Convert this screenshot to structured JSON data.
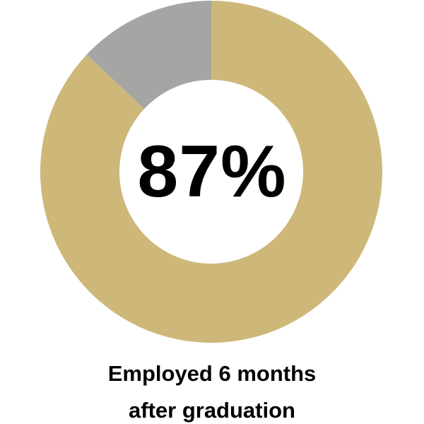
{
  "chart_data": {
    "type": "pie",
    "style": "donut",
    "center_label": "87%",
    "caption_lines": [
      "Employed 6 months",
      "after graduation"
    ],
    "slices": [
      {
        "value": 87,
        "color": "#cdb87a"
      },
      {
        "value": 13,
        "color": "#a5a6a4"
      }
    ],
    "start_angle_deg": 0,
    "direction": "clockwise",
    "legend": "none"
  }
}
